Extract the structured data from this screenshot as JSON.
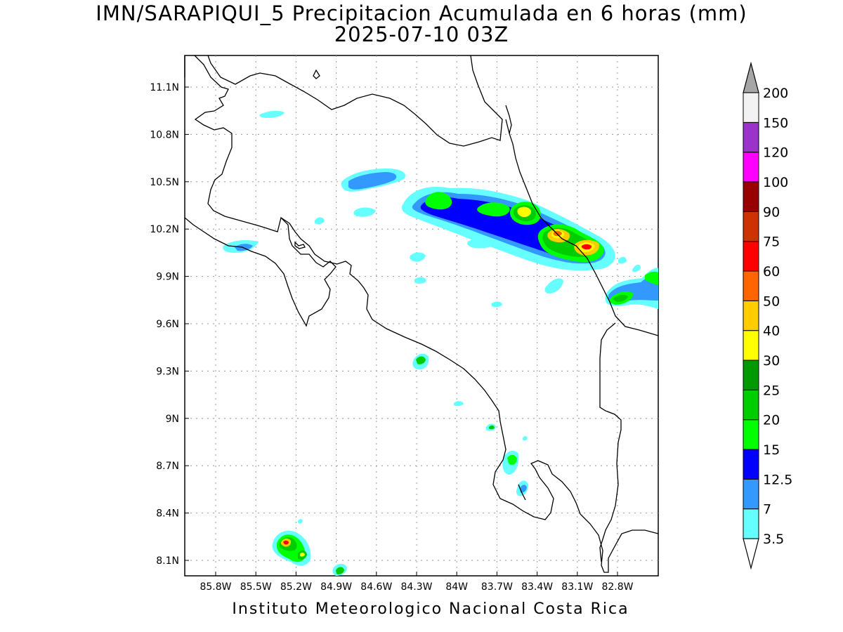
{
  "title": {
    "line1": "IMN/SARAPIQUI_5 Precipitacion Acumulada en 6 horas (mm)",
    "line2": "2025-07-10 03Z"
  },
  "footer": "Instituto Meteorologico Nacional Costa Rica",
  "map": {
    "lat_labels": [
      "11.1N",
      "10.8N",
      "10.5N",
      "10.2N",
      "9.9N",
      "9.6N",
      "9.3N",
      "9N",
      "8.7N",
      "8.4N",
      "8.1N"
    ],
    "lon_labels": [
      "85.8W",
      "85.5W",
      "85.2W",
      "84.9W",
      "84.6W",
      "84.3W",
      "84W",
      "83.7W",
      "83.4W",
      "83.1W",
      "82.8W"
    ],
    "grid": true
  },
  "colorbar": {
    "labels": [
      "3.5",
      "7",
      "12.5",
      "15",
      "20",
      "25",
      "30",
      "40",
      "50",
      "60",
      "75",
      "90",
      "100",
      "120",
      "150",
      "200"
    ],
    "colors": [
      "#66ffff",
      "#3399ff",
      "#0000ff",
      "#00ff00",
      "#00cc00",
      "#009900",
      "#ffff00",
      "#ffcc00",
      "#ff6600",
      "#ff0000",
      "#cc3300",
      "#990000",
      "#ff00ff",
      "#9933cc",
      "#f2f2f2"
    ],
    "over_color": "#a6a6a6",
    "under_color": "#ffffff"
  }
}
